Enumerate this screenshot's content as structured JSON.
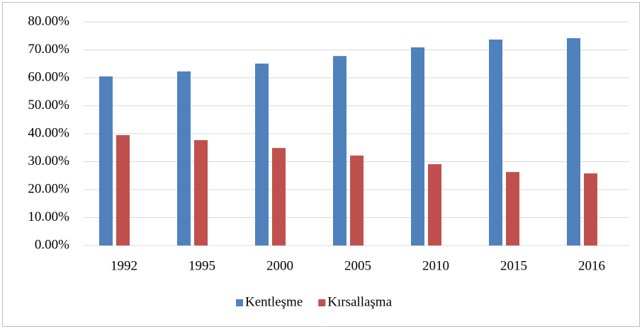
{
  "chart_data": {
    "type": "bar",
    "categories": [
      "1992",
      "1995",
      "2000",
      "2005",
      "2010",
      "2015",
      "2016"
    ],
    "series": [
      {
        "name": "Kentleşme",
        "color": "#4f81bd",
        "values": [
          60.5,
          62.3,
          65.1,
          67.8,
          70.9,
          73.7,
          74.2
        ]
      },
      {
        "name": "Kırsallaşma",
        "color": "#c0504d",
        "values": [
          39.5,
          37.7,
          34.9,
          32.2,
          29.1,
          26.3,
          25.8
        ]
      }
    ],
    "ylim": [
      0,
      80
    ],
    "yticks": [
      {
        "value": 0,
        "label": "0.00%"
      },
      {
        "value": 10,
        "label": "10.00%"
      },
      {
        "value": 20,
        "label": "20.00%"
      },
      {
        "value": 30,
        "label": "30.00%"
      },
      {
        "value": 40,
        "label": "40.00%"
      },
      {
        "value": 50,
        "label": "50.00%"
      },
      {
        "value": 60,
        "label": "60.00%"
      },
      {
        "value": 70,
        "label": "70.00%"
      },
      {
        "value": 80,
        "label": "80.00%"
      }
    ],
    "grid": true,
    "legend": "bottom"
  }
}
